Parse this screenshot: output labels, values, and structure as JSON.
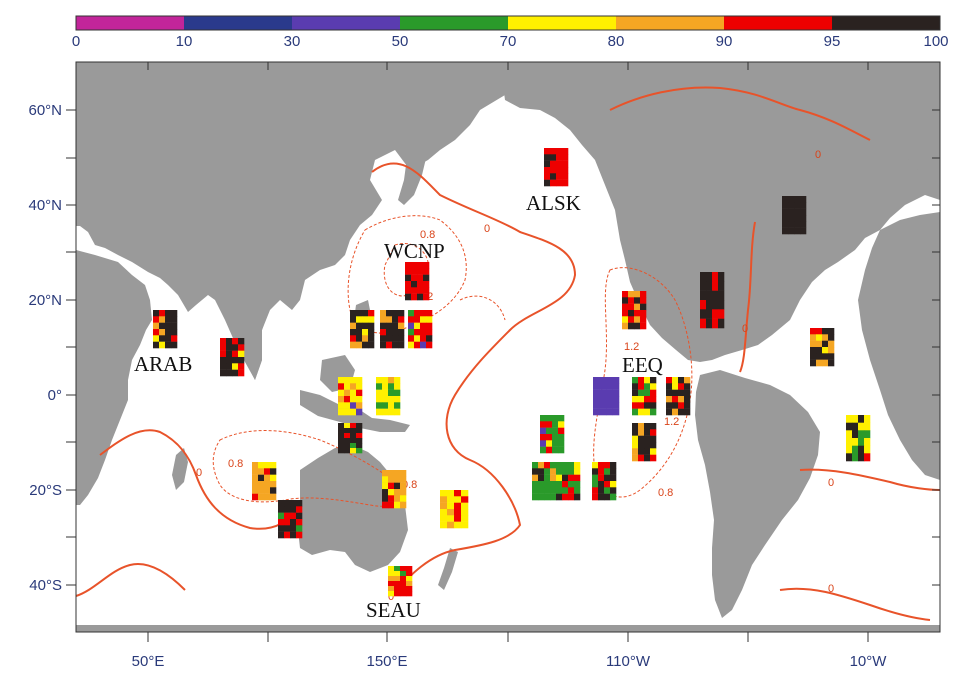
{
  "colorbar": {
    "ticks": [
      "0",
      "10",
      "30",
      "50",
      "70",
      "80",
      "90",
      "95",
      "100"
    ],
    "colors": [
      "#c2259a",
      "#2a3a8c",
      "#5a3cb0",
      "#2a9a2a",
      "#fff000",
      "#f5a623",
      "#ee0000",
      "#2a2220"
    ]
  },
  "axes": {
    "lon_labels": [
      "50°E",
      "150°E",
      "110°W",
      "10°W"
    ],
    "lat_labels": [
      "60°N",
      "40°N",
      "20°N",
      "0°",
      "20°S",
      "40°S"
    ]
  },
  "regions": {
    "arab": "ARAB",
    "wcnp": "WCNP",
    "alsk": "ALSK",
    "eeq": "EEQ",
    "seau": "SEAU"
  },
  "contour_labels": [
    "0",
    "0",
    "0",
    "0",
    "0",
    "0",
    "0",
    "0.8",
    "0.8",
    "0.8",
    "0.8",
    "1.2",
    "1.2",
    "1.2"
  ],
  "colors": {
    "land": "#9a9a9a",
    "contour": "#e8532a",
    "frame": "#333333"
  }
}
